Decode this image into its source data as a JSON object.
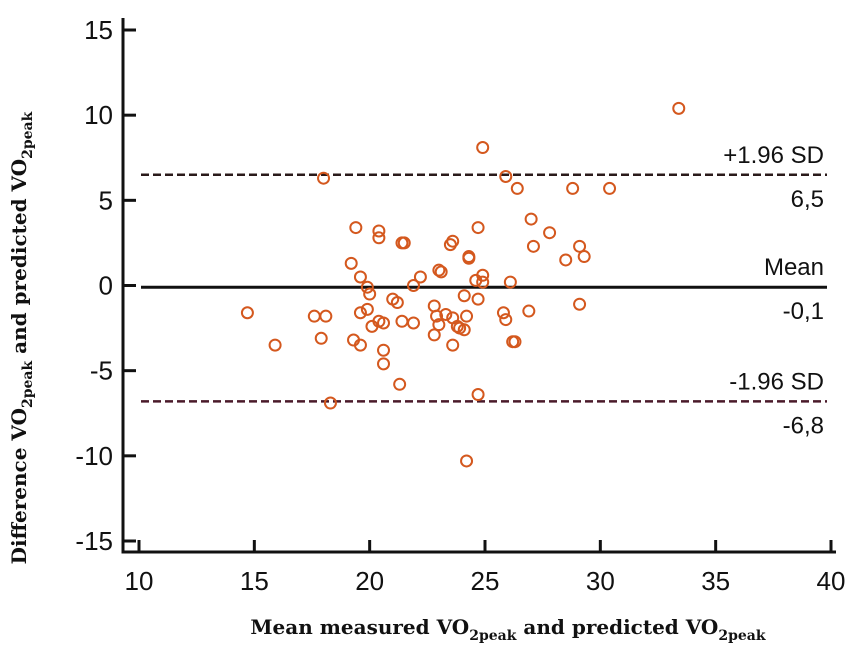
{
  "chart_data": {
    "type": "scatter",
    "title": "",
    "xlabel": {
      "main": "Mean measured VO",
      "sub1": "2peak",
      "mid": " and predicted VO",
      "sub2": "2peak"
    },
    "ylabel": {
      "main": "Difference VO",
      "sub1": "2peak",
      "mid": "  and predicted VO",
      "sub2": "2peak"
    },
    "xlim": [
      10,
      40
    ],
    "ylim": [
      -15,
      15
    ],
    "x_ticks": [
      10,
      15,
      20,
      25,
      30,
      35,
      40
    ],
    "y_ticks": [
      15,
      10,
      5,
      0,
      -5,
      -10,
      -15
    ],
    "x_tick_labels": [
      "10",
      "15",
      "20",
      "25",
      "30",
      "35",
      "40"
    ],
    "y_tick_labels": [
      "15",
      "10",
      "5",
      "0",
      "-5",
      "-10",
      "-15"
    ],
    "grid": false,
    "reference_lines": [
      {
        "name": "upper-loa",
        "label": "+1.96 SD",
        "value_label": "6,5",
        "y": 6.5,
        "style": "dashed",
        "color": "#2a1a1a"
      },
      {
        "name": "mean",
        "label": "Mean",
        "value_label": "-0,1",
        "y": -0.1,
        "style": "solid",
        "color": "#111111"
      },
      {
        "name": "lower-loa",
        "label": "-1.96 SD",
        "value_label": "-6,8",
        "y": -6.8,
        "style": "dashed",
        "color": "#4a1a2a"
      }
    ],
    "marker_color": "#d4581e",
    "points": [
      [
        14.7,
        -1.6
      ],
      [
        15.9,
        -3.5
      ],
      [
        17.6,
        -1.8
      ],
      [
        18.1,
        -1.8
      ],
      [
        17.9,
        -3.1
      ],
      [
        18.0,
        6.3
      ],
      [
        18.3,
        -6.9
      ],
      [
        19.4,
        3.4
      ],
      [
        20.4,
        3.2
      ],
      [
        20.4,
        2.8
      ],
      [
        21.4,
        2.5
      ],
      [
        21.5,
        2.5
      ],
      [
        19.2,
        1.3
      ],
      [
        19.6,
        0.5
      ],
      [
        19.9,
        -0.1
      ],
      [
        20.0,
        -0.5
      ],
      [
        19.6,
        -1.6
      ],
      [
        19.9,
        -1.4
      ],
      [
        20.1,
        -2.4
      ],
      [
        20.4,
        -2.1
      ],
      [
        20.6,
        -2.2
      ],
      [
        19.3,
        -3.2
      ],
      [
        19.6,
        -3.5
      ],
      [
        20.6,
        -3.8
      ],
      [
        20.6,
        -4.6
      ],
      [
        21.0,
        -0.8
      ],
      [
        21.2,
        -1.0
      ],
      [
        21.4,
        -2.1
      ],
      [
        21.9,
        -2.2
      ],
      [
        21.3,
        -5.8
      ],
      [
        21.9,
        0.0
      ],
      [
        22.2,
        0.5
      ],
      [
        22.8,
        -1.2
      ],
      [
        22.9,
        -1.8
      ],
      [
        22.8,
        -2.9
      ],
      [
        23.0,
        -2.3
      ],
      [
        23.0,
        0.9
      ],
      [
        23.1,
        0.8
      ],
      [
        23.5,
        2.4
      ],
      [
        23.6,
        2.6
      ],
      [
        23.3,
        -1.7
      ],
      [
        23.6,
        -1.9
      ],
      [
        23.6,
        -3.5
      ],
      [
        23.8,
        -2.4
      ],
      [
        23.9,
        -2.5
      ],
      [
        24.1,
        -0.6
      ],
      [
        24.2,
        -1.8
      ],
      [
        24.1,
        -2.6
      ],
      [
        24.3,
        1.7
      ],
      [
        24.3,
        1.6
      ],
      [
        24.6,
        0.3
      ],
      [
        24.7,
        3.4
      ],
      [
        24.7,
        -0.8
      ],
      [
        24.9,
        0.6
      ],
      [
        24.9,
        0.2
      ],
      [
        24.9,
        8.1
      ],
      [
        24.2,
        -10.3
      ],
      [
        24.7,
        -6.4
      ],
      [
        25.8,
        -1.6
      ],
      [
        25.9,
        -2.0
      ],
      [
        25.9,
        6.4
      ],
      [
        26.1,
        0.2
      ],
      [
        26.2,
        -3.3
      ],
      [
        26.3,
        -3.3
      ],
      [
        26.4,
        5.7
      ],
      [
        27.0,
        3.9
      ],
      [
        27.1,
        2.3
      ],
      [
        26.9,
        -1.5
      ],
      [
        27.8,
        3.1
      ],
      [
        28.5,
        1.5
      ],
      [
        28.8,
        5.7
      ],
      [
        29.1,
        2.3
      ],
      [
        29.3,
        1.7
      ],
      [
        29.1,
        -1.1
      ],
      [
        30.4,
        5.7
      ],
      [
        33.4,
        10.4
      ]
    ]
  }
}
